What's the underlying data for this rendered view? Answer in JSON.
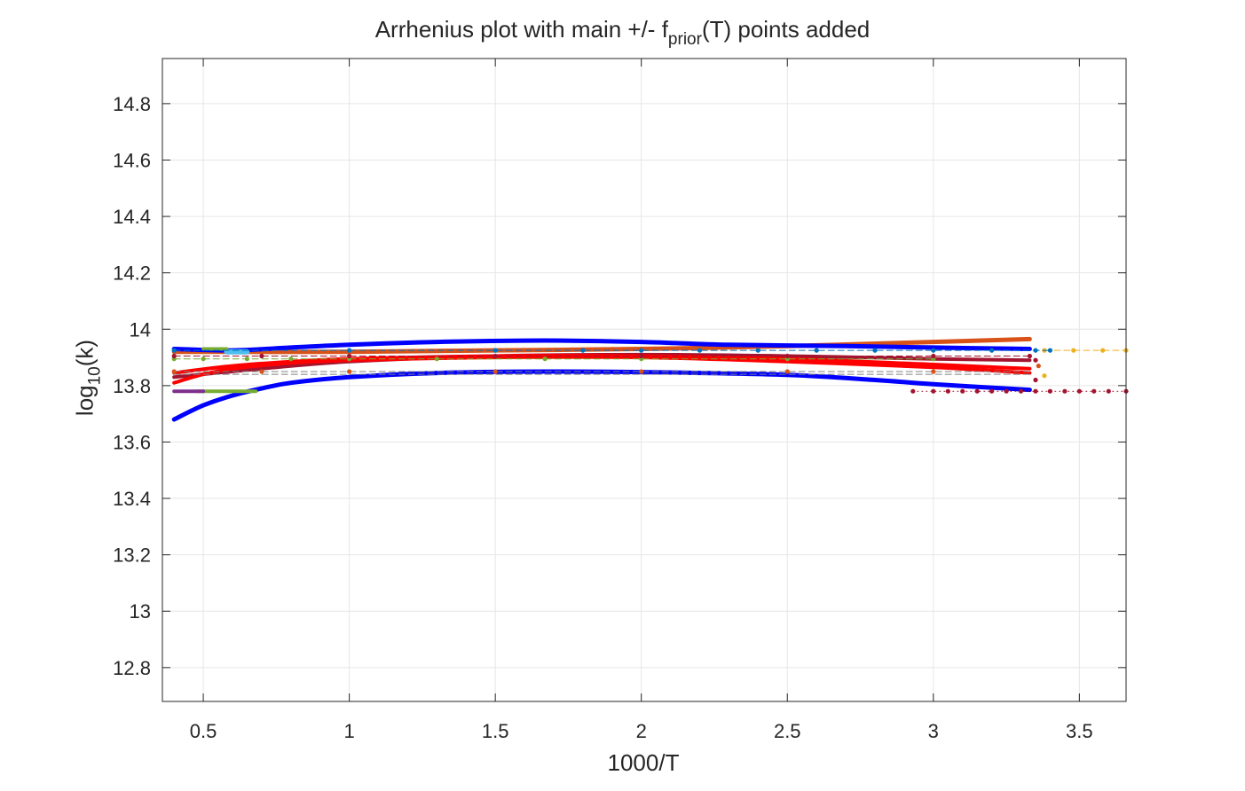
{
  "chart_data": {
    "type": "line",
    "title": {
      "main": "Arrhenius plot with main +/- f",
      "sub": "prior",
      "tail": "(T) points added"
    },
    "xlabel": "1000/T",
    "ylabel": {
      "main": "log",
      "sub": "10",
      "tail": "(k)"
    },
    "xlim": [
      0.36,
      3.66
    ],
    "ylim": [
      12.68,
      14.96
    ],
    "xticks": [
      0.5,
      1,
      1.5,
      2,
      2.5,
      3,
      3.5
    ],
    "xtick_labels": [
      "0.5",
      "1",
      "1.5",
      "2",
      "2.5",
      "3",
      "3.5"
    ],
    "yticks": [
      12.8,
      13,
      13.2,
      13.4,
      13.6,
      13.8,
      14,
      14.2,
      14.4,
      14.6,
      14.8
    ],
    "ytick_labels": [
      "12.8",
      "13",
      "13.2",
      "13.4",
      "13.6",
      "13.8",
      "14",
      "14.2",
      "14.4",
      "14.6",
      "14.8"
    ],
    "grid": true,
    "series": [
      {
        "color": "#D95319",
        "width": 5,
        "style": "solid",
        "x": [
          0.4,
          1.0,
          1.5,
          2.0,
          2.5,
          3.0,
          3.33
        ],
        "y": [
          13.92,
          13.92,
          13.925,
          13.93,
          13.94,
          13.955,
          13.965
        ]
      },
      {
        "color": "#A2142F",
        "width": 4,
        "style": "solid",
        "x": [
          0.4,
          0.7,
          1.0,
          1.5,
          2.0,
          2.5,
          3.0,
          3.33
        ],
        "y": [
          13.83,
          13.86,
          13.885,
          13.905,
          13.91,
          13.905,
          13.895,
          13.89
        ]
      },
      {
        "color": "#FF0000",
        "width": 4,
        "style": "solid",
        "x": [
          0.4,
          0.6,
          0.8,
          1.0,
          1.5,
          2.0,
          2.5,
          3.0,
          3.33
        ],
        "y": [
          13.845,
          13.87,
          13.885,
          13.895,
          13.905,
          13.905,
          13.895,
          13.875,
          13.86
        ]
      },
      {
        "color": "#FF0000",
        "width": 4,
        "style": "solid",
        "x": [
          0.4,
          0.5,
          0.6,
          0.8,
          1.0,
          1.5,
          2.0,
          2.5,
          3.0,
          3.33
        ],
        "y": [
          13.81,
          13.84,
          13.86,
          13.88,
          13.89,
          13.9,
          13.9,
          13.885,
          13.865,
          13.845
        ]
      },
      {
        "color": "#0000FF",
        "width": 5,
        "style": "solid",
        "x": [
          0.4,
          0.6,
          0.8,
          1.0,
          1.3,
          1.67,
          2.0,
          2.3,
          2.7,
          3.0,
          3.33
        ],
        "y": [
          13.93,
          13.925,
          13.935,
          13.945,
          13.955,
          13.96,
          13.955,
          13.945,
          13.94,
          13.935,
          13.93
        ]
      },
      {
        "color": "#0000FF",
        "width": 5,
        "style": "solid",
        "x": [
          0.4,
          0.5,
          0.6,
          0.7,
          0.8,
          1.0,
          1.3,
          1.67,
          2.0,
          2.5,
          2.8,
          3.0,
          3.33
        ],
        "y": [
          13.68,
          13.73,
          13.765,
          13.79,
          13.81,
          13.83,
          13.845,
          13.85,
          13.848,
          13.838,
          13.82,
          13.805,
          13.785
        ]
      },
      {
        "color": "#4DBEEE",
        "width": 6,
        "style": "solid",
        "x": [
          0.58,
          0.65
        ],
        "y": [
          13.92,
          13.92
        ]
      },
      {
        "color": "#77AC30",
        "width": 4,
        "style": "solid",
        "x": [
          0.48,
          0.68
        ],
        "y": [
          13.78,
          13.78
        ]
      },
      {
        "color": "#7E2F8E",
        "width": 4,
        "style": "solid",
        "x": [
          0.4,
          0.5
        ],
        "y": [
          13.78,
          13.78
        ]
      },
      {
        "color": "#77AC30",
        "width": 4,
        "style": "solid",
        "x": [
          0.5,
          0.58
        ],
        "y": [
          13.93,
          13.93
        ]
      },
      {
        "color": "#808080",
        "width": 1,
        "style": "dashed",
        "x": [
          0.4,
          3.33
        ],
        "y": [
          13.85,
          13.85
        ]
      },
      {
        "color": "#808080",
        "width": 1,
        "style": "dashed",
        "x": [
          0.4,
          3.33
        ],
        "y": [
          13.84,
          13.84
        ]
      },
      {
        "color": "#77AC30",
        "width": 1,
        "style": "dashed",
        "markers": true,
        "x": [
          0.4,
          0.5,
          0.65,
          0.8,
          1.0,
          1.3,
          1.67,
          2.0,
          2.5,
          3.0
        ],
        "y": [
          13.895,
          13.895,
          13.895,
          13.895,
          13.895,
          13.895,
          13.895,
          13.895,
          13.895,
          13.895
        ]
      },
      {
        "color": "#A2142F",
        "width": 1,
        "style": "dashed",
        "markers": true,
        "x": [
          0.4,
          0.7,
          1.0,
          1.5,
          2.0,
          2.5,
          3.0,
          3.33
        ],
        "y": [
          13.905,
          13.905,
          13.905,
          13.905,
          13.905,
          13.905,
          13.905,
          13.905
        ]
      },
      {
        "color": "#EDB120",
        "width": 1,
        "style": "dashed",
        "markers": true,
        "x": [
          3.38,
          3.48,
          3.58,
          3.66
        ],
        "y": [
          13.925,
          13.925,
          13.925,
          13.925
        ]
      },
      {
        "color": "#0072BD",
        "width": 1,
        "style": "dashed",
        "markers": true,
        "x": [
          0.4,
          1.0,
          1.5,
          1.8,
          2.0,
          2.2,
          2.4,
          2.6,
          2.8,
          3.0,
          3.2,
          3.35,
          3.4
        ],
        "y": [
          13.925,
          13.925,
          13.925,
          13.925,
          13.925,
          13.925,
          13.925,
          13.925,
          13.925,
          13.925,
          13.925,
          13.925,
          13.925
        ]
      },
      {
        "color": "#A2142F",
        "width": 1,
        "style": "dotted",
        "markers": true,
        "x": [
          2.93,
          3.0,
          3.05,
          3.1,
          3.15,
          3.2,
          3.25,
          3.3,
          3.35,
          3.4,
          3.45,
          3.5,
          3.55,
          3.6,
          3.66
        ],
        "y": [
          13.78,
          13.78,
          13.78,
          13.78,
          13.78,
          13.78,
          13.78,
          13.78,
          13.78,
          13.78,
          13.78,
          13.78,
          13.78,
          13.78,
          13.78
        ]
      },
      {
        "color": "#D95319",
        "width": 1,
        "style": "none",
        "markers": true,
        "x": [
          0.4,
          0.7,
          1.0,
          1.5,
          2.0,
          2.5,
          3.0,
          3.36
        ],
        "y": [
          13.85,
          13.85,
          13.85,
          13.85,
          13.85,
          13.85,
          13.85,
          13.87
        ]
      },
      {
        "color": "#A2142F",
        "width": 1,
        "style": "none",
        "markers": true,
        "x": [
          3.35,
          3.35
        ],
        "y": [
          13.82,
          13.89
        ]
      },
      {
        "color": "#EDB120",
        "width": 1,
        "style": "none",
        "markers": true,
        "x": [
          3.38
        ],
        "y": [
          13.835
        ]
      }
    ]
  }
}
